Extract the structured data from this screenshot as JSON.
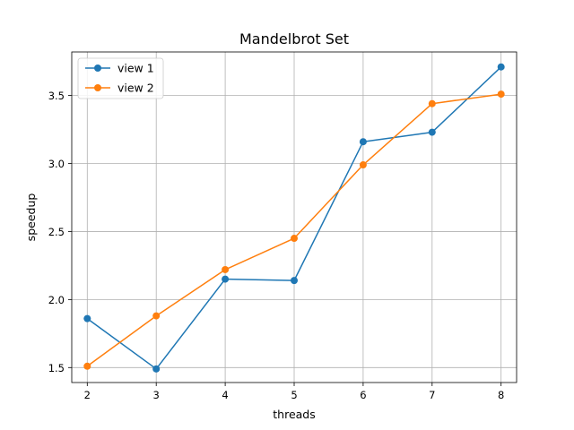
{
  "chart_data": {
    "type": "line",
    "title": "Mandelbrot Set",
    "xlabel": "threads",
    "ylabel": "speedup",
    "x": [
      2,
      3,
      4,
      5,
      6,
      7,
      8
    ],
    "xticks": [
      "2",
      "3",
      "4",
      "5",
      "6",
      "7",
      "8"
    ],
    "yticks": [
      "1.5",
      "2.0",
      "2.5",
      "3.0",
      "3.5"
    ],
    "xlim": [
      1.775,
      8.225
    ],
    "ylim": [
      1.39,
      3.82
    ],
    "grid": true,
    "legend_position": "upper-left",
    "series": [
      {
        "name": "view 1",
        "color": "#1f77b4",
        "marker": "circle",
        "values": [
          1.86,
          1.49,
          2.15,
          2.14,
          3.16,
          3.23,
          3.71
        ]
      },
      {
        "name": "view 2",
        "color": "#ff7f0e",
        "marker": "circle",
        "values": [
          1.51,
          1.88,
          2.22,
          2.45,
          2.99,
          3.44,
          3.51
        ]
      }
    ]
  }
}
